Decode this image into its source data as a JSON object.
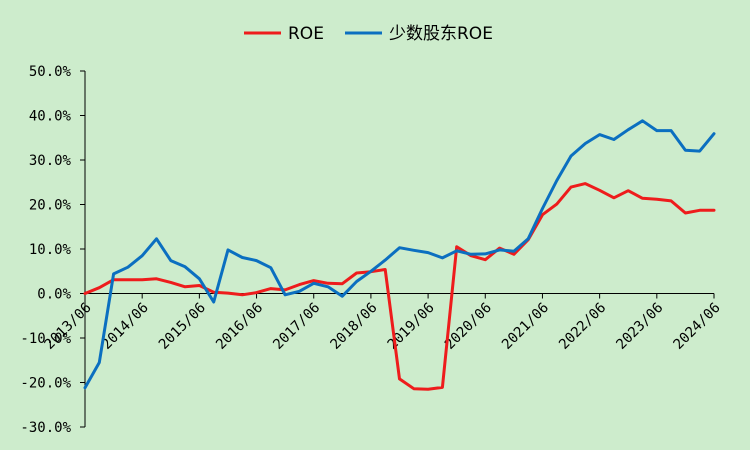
{
  "chart_data": {
    "type": "line",
    "title": "",
    "xlabel": "",
    "ylabel": "",
    "ylim": [
      -30,
      50
    ],
    "yticks": [
      "50.0%",
      "40.0%",
      "30.0%",
      "20.0%",
      "10.0%",
      "0.0%",
      "-10.0%",
      "-20.0%",
      "-30.0%"
    ],
    "ytick_values": [
      50,
      40,
      30,
      20,
      10,
      0,
      -10,
      -20,
      -30
    ],
    "x_tick_labels": [
      "2013/06",
      "2014/06",
      "2015/06",
      "2016/06",
      "2017/06",
      "2018/06",
      "2019/06",
      "2020/06",
      "2021/06",
      "2022/06",
      "2023/06",
      "2024/06"
    ],
    "legend_position": "top",
    "grid": false,
    "x": [
      "2013/06",
      "2013/09",
      "2013/12",
      "2014/03",
      "2014/06",
      "2014/09",
      "2014/12",
      "2015/03",
      "2015/06",
      "2015/09",
      "2015/12",
      "2016/03",
      "2016/06",
      "2016/09",
      "2016/12",
      "2017/03",
      "2017/06",
      "2017/09",
      "2017/12",
      "2018/03",
      "2018/06",
      "2018/09",
      "2018/12",
      "2019/03",
      "2019/06",
      "2019/09",
      "2019/12",
      "2020/03",
      "2020/06",
      "2020/09",
      "2020/12",
      "2021/03",
      "2021/06",
      "2021/09",
      "2021/12",
      "2022/03",
      "2022/06",
      "2022/09",
      "2022/12",
      "2023/03",
      "2023/06",
      "2023/09",
      "2023/12",
      "2024/03",
      "2024/06"
    ],
    "series": [
      {
        "name": "ROE",
        "color": "#ee1c1c",
        "values": [
          0.0,
          1.3,
          3.1,
          3.1,
          3.1,
          3.3,
          2.5,
          1.5,
          1.8,
          0.3,
          0.1,
          -0.3,
          0.2,
          1.1,
          0.8,
          2.0,
          2.9,
          2.3,
          2.2,
          4.6,
          4.9,
          5.4,
          -19.2,
          -21.4,
          -21.5,
          -21.1,
          10.5,
          8.5,
          7.6,
          10.2,
          8.8,
          12.1,
          17.7,
          20.1,
          23.9,
          24.7,
          23.2,
          21.5,
          23.1,
          21.4,
          21.2,
          20.8,
          18.1,
          18.7,
          18.7
        ]
      },
      {
        "name": "少数股东ROE",
        "color": "#0b6fc0",
        "values": [
          -21.2,
          -15.5,
          4.4,
          5.9,
          8.5,
          12.3,
          7.4,
          6.0,
          3.3,
          -1.9,
          9.8,
          8.1,
          7.4,
          5.8,
          -0.3,
          0.5,
          2.3,
          1.5,
          -0.6,
          2.7,
          5.0,
          7.5,
          10.3,
          9.7,
          9.2,
          8.0,
          9.6,
          8.8,
          8.9,
          9.8,
          9.5,
          12.3,
          19.1,
          25.4,
          30.9,
          33.7,
          35.7,
          34.6,
          36.8,
          38.8,
          36.6,
          36.6,
          32.2,
          32.0,
          35.9
        ]
      }
    ]
  }
}
